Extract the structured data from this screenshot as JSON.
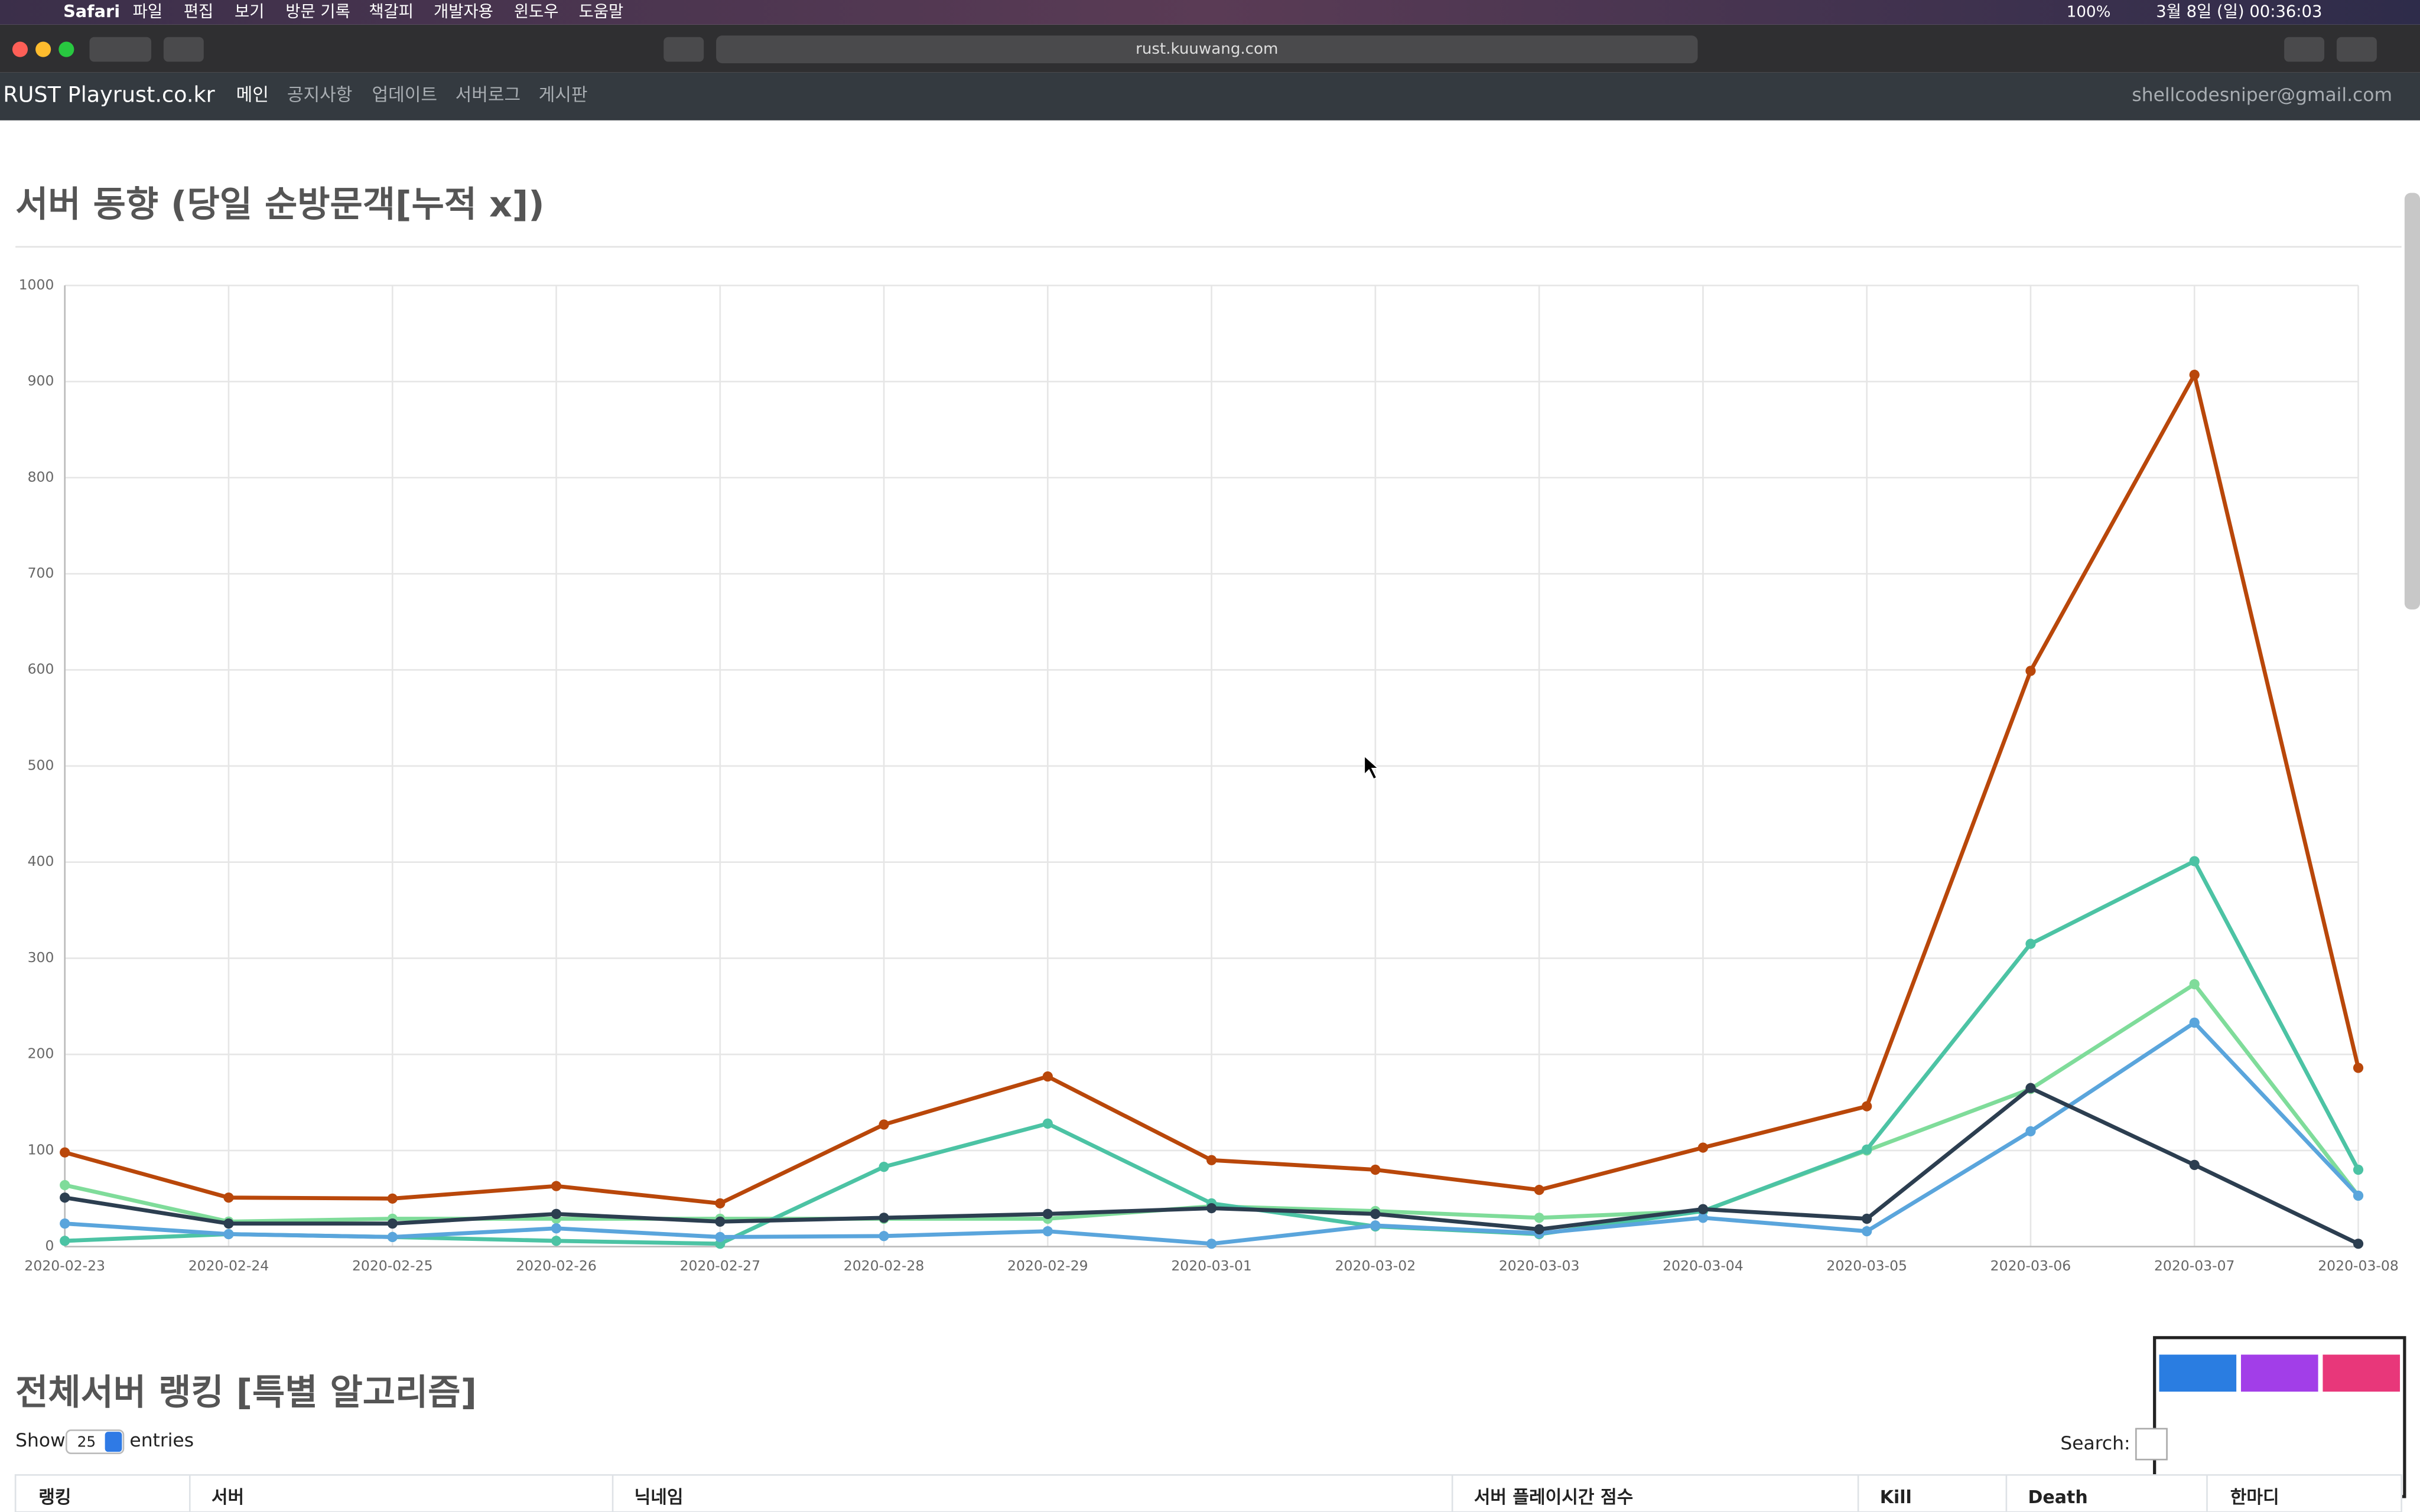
{
  "menubar": {
    "app": "Safari",
    "items": [
      "파일",
      "편집",
      "보기",
      "방문 기록",
      "책갈피",
      "개발자용",
      "윈도우",
      "도움말"
    ],
    "battery": "100%",
    "clock": "3월 8일 (일) 00:36:03"
  },
  "browser": {
    "url": "rust.kuuwang.com"
  },
  "nav": {
    "brand": "RUST Playrust.co.kr",
    "items": [
      "메인",
      "공지사항",
      "업데이트",
      "서버로그",
      "게시판"
    ],
    "user": "shellcodesniper@gmail.com"
  },
  "chart_data": {
    "type": "line",
    "title": "서버 동향 (당일 순방문객[누적 x])",
    "categories": [
      "2020-02-23",
      "2020-02-24",
      "2020-02-25",
      "2020-02-26",
      "2020-02-27",
      "2020-02-28",
      "2020-02-29",
      "2020-03-01",
      "2020-03-02",
      "2020-03-03",
      "2020-03-04",
      "2020-03-05",
      "2020-03-06",
      "2020-03-07",
      "2020-03-08"
    ],
    "series": [
      {
        "color": "#7fdc9a",
        "values": [
          64,
          26,
          29,
          29,
          29,
          29,
          29,
          42,
          37,
          30,
          37,
          100,
          164,
          273,
          53
        ]
      },
      {
        "color": "#4cc3a4",
        "values": [
          6,
          13,
          10,
          6,
          3,
          83,
          128,
          45,
          21,
          13,
          37,
          101,
          315,
          401,
          80
        ]
      },
      {
        "color": "#5aa5dc",
        "values": [
          24,
          13,
          10,
          19,
          10,
          11,
          16,
          3,
          22,
          14,
          30,
          16,
          120,
          233,
          53
        ]
      },
      {
        "color": "#2c3e50",
        "values": [
          51,
          24,
          24,
          34,
          26,
          30,
          34,
          40,
          34,
          18,
          39,
          29,
          165,
          85,
          3
        ]
      },
      {
        "color": "#b9470a",
        "values": [
          98,
          51,
          50,
          63,
          45,
          127,
          177,
          90,
          80,
          59,
          103,
          146,
          599,
          907,
          186
        ]
      }
    ],
    "ylim": [
      0,
      1000
    ],
    "yticks": [
      0,
      100,
      200,
      300,
      400,
      500,
      600,
      700,
      800,
      900,
      1000
    ],
    "grid": true
  },
  "ranking": {
    "title": "전체서버 랭킹 [특별 알고리즘]",
    "show": "Show",
    "page_size": "25",
    "entries": "entries",
    "search": "Search:",
    "columns": [
      "랭킹",
      "서버",
      "닉네임",
      "서버 플레이시간 점수",
      "Kill",
      "Death",
      "한마디"
    ]
  }
}
